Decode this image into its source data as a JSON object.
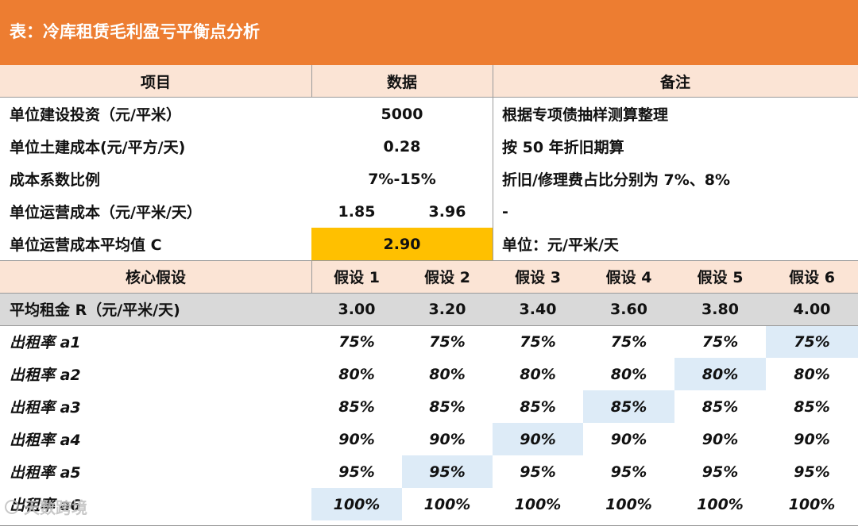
{
  "title": "表：冷库租赁毛利盈亏平衡点分析",
  "header": {
    "col1": "项目",
    "col2": "数据",
    "col3": "备注"
  },
  "info_rows": [
    {
      "label": "单位建设投资（元/平米）",
      "value": "5000",
      "note": "根据专项债抽样测算整理"
    },
    {
      "label": "单位土建成本(元/平方/天)",
      "value": "0.28",
      "note": "按 50 年折旧期算"
    },
    {
      "label": "成本系数比例",
      "value": "7%-15%",
      "note": "折旧/修理费占比分别为 7%、8%"
    },
    {
      "label": "单位运营成本（元/平米/天）",
      "value_low": "1.85",
      "value_high": "3.96",
      "note": "-"
    },
    {
      "label": "单位运营成本平均值 C",
      "value": "2.90",
      "note": "单位：元/平米/天"
    }
  ],
  "assumptions": {
    "header_label": "核心假设",
    "columns": [
      "假设 1",
      "假设 2",
      "假设 3",
      "假设 4",
      "假设 5",
      "假设 6"
    ],
    "rent_label": "平均租金 R（元/平米/天)",
    "rents": [
      "3.00",
      "3.20",
      "3.40",
      "3.60",
      "3.80",
      "4.00"
    ],
    "rows": [
      {
        "label": "出租率 a1",
        "values": [
          "75%",
          "75%",
          "75%",
          "75%",
          "75%",
          "75%"
        ],
        "highlight": 5
      },
      {
        "label": "出租率 a2",
        "values": [
          "80%",
          "80%",
          "80%",
          "80%",
          "80%",
          "80%"
        ],
        "highlight": 4
      },
      {
        "label": "出租率 a3",
        "values": [
          "85%",
          "85%",
          "85%",
          "85%",
          "85%",
          "85%"
        ],
        "highlight": 3
      },
      {
        "label": "出租率 a4",
        "values": [
          "90%",
          "90%",
          "90%",
          "90%",
          "90%",
          "90%"
        ],
        "highlight": 2
      },
      {
        "label": "出租率 a5",
        "values": [
          "95%",
          "95%",
          "95%",
          "95%",
          "95%",
          "95%"
        ],
        "highlight": 1
      },
      {
        "label": "出租率 a6",
        "values": [
          "100%",
          "100%",
          "100%",
          "100%",
          "100%",
          "100%"
        ],
        "highlight": 0
      }
    ]
  },
  "watermark": "天数跨境",
  "colors": {
    "title_bg": "#ED7D31",
    "header_bg": "#FBE4D5",
    "highlight_yellow": "#FFC000",
    "highlight_blue": "#DDEBF7",
    "rent_row_bg": "#D9D9D9"
  }
}
